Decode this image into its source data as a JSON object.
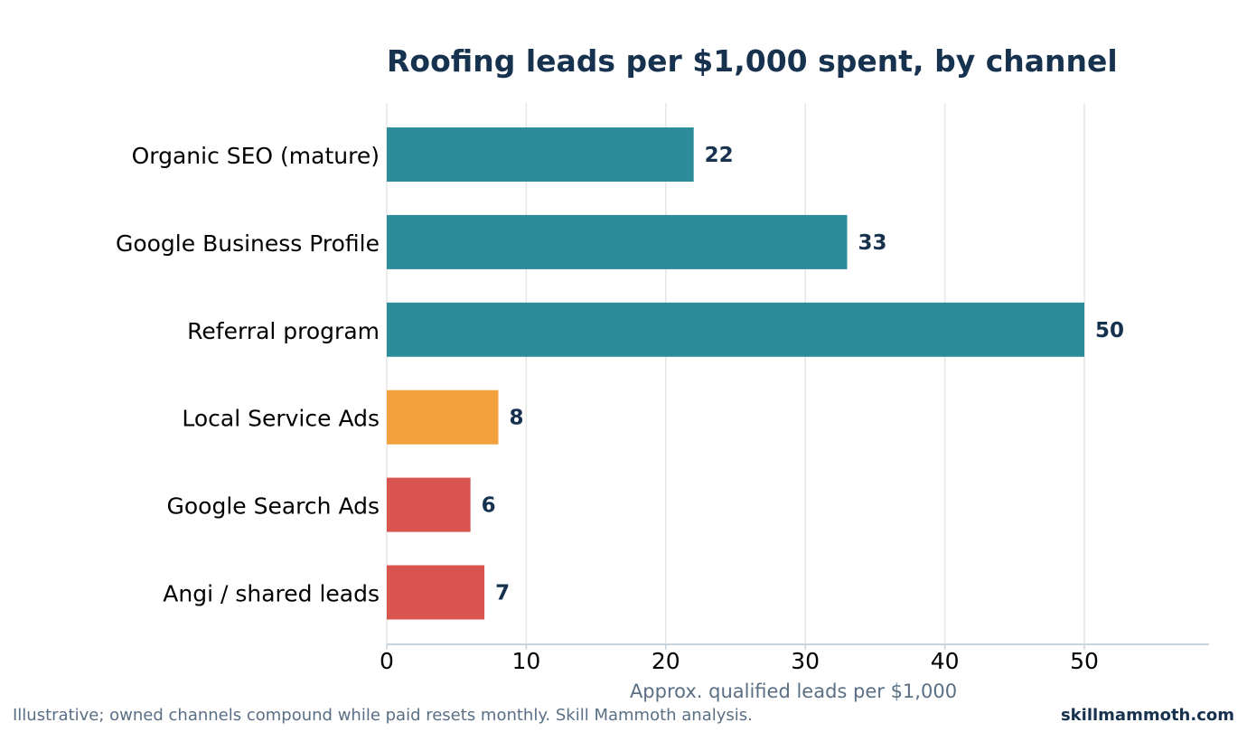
{
  "chart_data": {
    "type": "bar",
    "orientation": "horizontal",
    "title": "Roofing leads per $1,000 spent, by channel",
    "xlabel": "Approx. qualified leads per $1,000",
    "ylabel": "",
    "categories": [
      "Organic SEO (mature)",
      "Google Business Profile",
      "Referral program",
      "Local Service Ads",
      "Google Search Ads",
      "Angi / shared leads"
    ],
    "values": [
      22,
      33,
      50,
      8,
      6,
      7
    ],
    "bar_colors": [
      "#2c8c99",
      "#2c8c99",
      "#2c8c99",
      "#f2a03d",
      "#d9534f",
      "#d9534f"
    ],
    "xlim": [
      0,
      59
    ],
    "xticks": [
      0,
      10,
      20,
      30,
      40,
      50
    ],
    "grid": true,
    "legend": "none"
  },
  "footer": {
    "note": "Illustrative; owned channels compound while paid resets monthly. Skill Mammoth analysis.",
    "brand": "skillmammoth.com"
  },
  "colors": {
    "title": "#17324f",
    "value_label": "#17324f",
    "grid": "#e6e6e6",
    "axis": "#c7d3dd",
    "xlabel": "#5a6f84"
  }
}
